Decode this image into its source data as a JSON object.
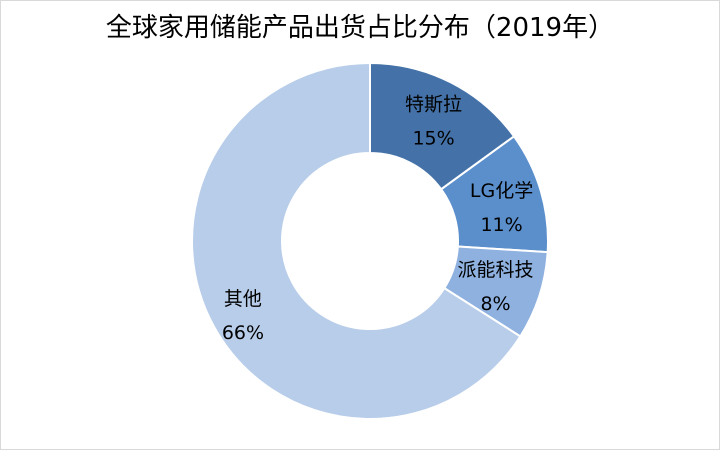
{
  "chart_data": {
    "type": "pie",
    "variant": "donut",
    "title": "全球家用储能产品出货占比分布（2019年）",
    "slices": [
      {
        "label": "特斯拉",
        "value": 15,
        "value_label": "15%",
        "color": "#4472a8"
      },
      {
        "label": "LG化学",
        "value": 11,
        "value_label": "11%",
        "color": "#5b8fcc"
      },
      {
        "label": "派能科技",
        "value": 8,
        "value_label": "8%",
        "color": "#8eb1df"
      },
      {
        "label": "其他",
        "value": 66,
        "value_label": "66%",
        "color": "#b8cde9"
      }
    ],
    "legend": "none"
  }
}
